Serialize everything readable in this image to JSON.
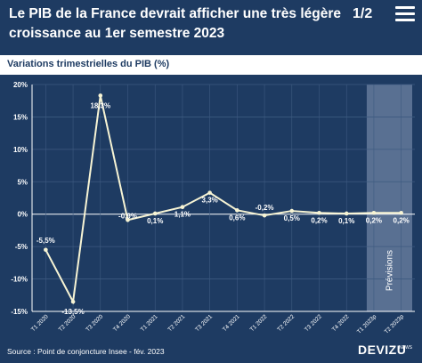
{
  "header": {
    "title": "Le PIB de la France devrait afficher une très légère croissance au 1er semestre 2023",
    "page_indicator": "1/2"
  },
  "subtitle": "Variations trimestrielles du PIB (%)",
  "footer": {
    "source": "Source : Point de conjoncture Insee - fév. 2023",
    "logo": "DEVIZU",
    "logo_sub": "NEWS"
  },
  "colors": {
    "background": "#1e3b62",
    "line": "#f7f4d4",
    "grid": "#3d5a80",
    "forecast_band": "#6e83a3",
    "text": "#ffffff"
  },
  "chart_data": {
    "type": "line",
    "categories": [
      "T1 2020",
      "T2 2020",
      "T3 2020",
      "T4 2020",
      "T1 2021",
      "T2 2021",
      "T3 2021",
      "T4 2021",
      "T1 2022",
      "T2 2022",
      "T3 2022",
      "T4 2022",
      "T1 2023p",
      "T2 2023p"
    ],
    "values": [
      -5.5,
      -13.5,
      18.3,
      -0.9,
      0.1,
      1.1,
      3.3,
      0.6,
      -0.2,
      0.5,
      0.2,
      0.1,
      0.2,
      0.2
    ],
    "data_labels": [
      "-5,5%",
      "-13,5%",
      "18,3%",
      "-0,9%",
      "0,1%",
      "1,1%",
      "3,3%",
      "0,6%",
      "-0,2%",
      "0,5%",
      "0,2%",
      "0,1%",
      "0,2%",
      "0,2%"
    ],
    "ylim": [
      -15,
      20
    ],
    "yticks": [
      -15,
      -10,
      -5,
      0,
      5,
      10,
      15,
      20
    ],
    "ytick_labels": [
      "-15%",
      "-10%",
      "-5%",
      "0%",
      "5%",
      "10%",
      "15%",
      "20%"
    ],
    "forecast_label": "Prévisions",
    "forecast_categories": [
      "T1 2023p",
      "T2 2023p"
    ],
    "grid": true,
    "legend": "none"
  }
}
